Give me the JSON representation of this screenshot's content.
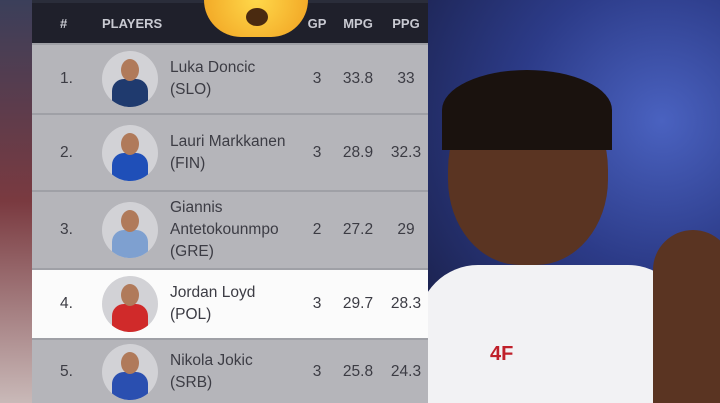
{
  "table": {
    "headers": {
      "rank": "#",
      "players": "PLAYERS",
      "gp": "GP",
      "mpg": "MPG",
      "ppg": "PPG"
    },
    "rows": [
      {
        "rank": "1.",
        "name": "Luka Doncic",
        "country": "(SLO)",
        "gp": "3",
        "mpg": "33.8",
        "ppg": "33",
        "jersey_color": "#1f3a6e"
      },
      {
        "rank": "2.",
        "name": "Lauri Markkanen",
        "country": "(FIN)",
        "gp": "3",
        "mpg": "28.9",
        "ppg": "32.3",
        "jersey_color": "#1f4fb8"
      },
      {
        "rank": "3.",
        "name": "Giannis Antetokounmpo",
        "country": "(GRE)",
        "gp": "2",
        "mpg": "27.2",
        "ppg": "29",
        "jersey_color": "#7ea0d0"
      },
      {
        "rank": "4.",
        "name": "Jordan Loyd",
        "country": "(POL)",
        "gp": "3",
        "mpg": "29.7",
        "ppg": "28.3",
        "jersey_color": "#d02a2a",
        "highlighted": true
      },
      {
        "rank": "5.",
        "name": "Nikola Jokic",
        "country": "(SRB)",
        "gp": "3",
        "mpg": "25.8",
        "ppg": "24.3",
        "jersey_color": "#2a4fb0"
      }
    ]
  },
  "emoji": "astonished-face",
  "photo": {
    "jersey_text": "4F"
  }
}
